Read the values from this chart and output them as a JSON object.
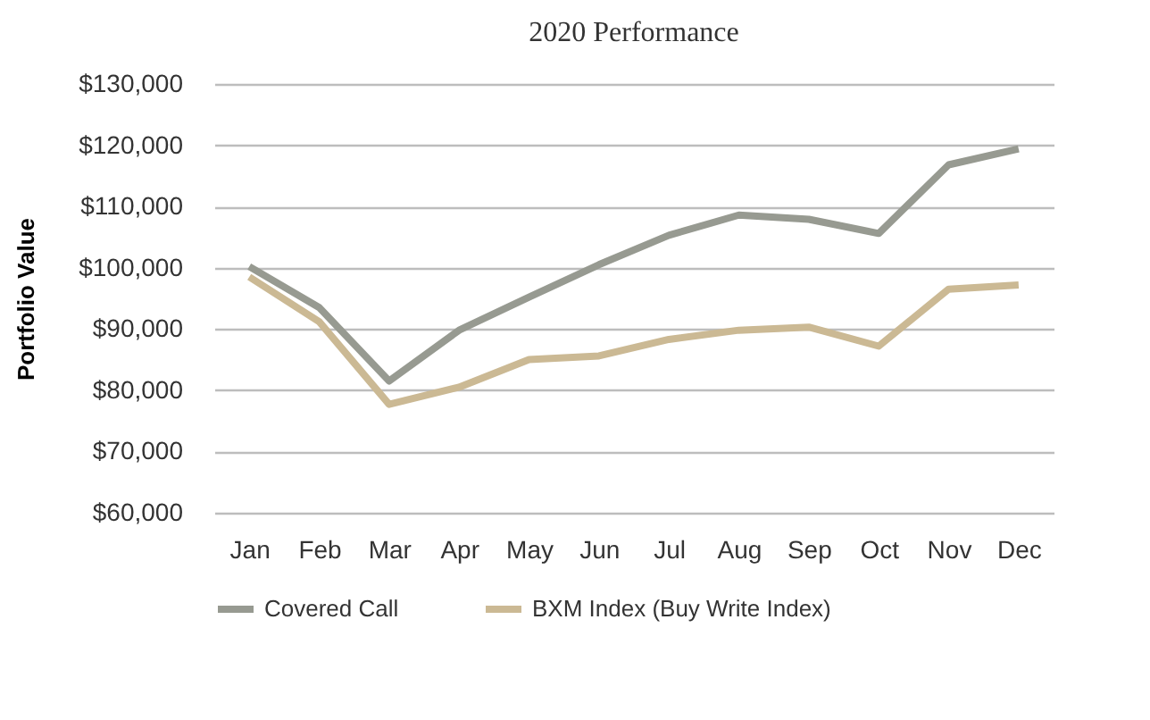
{
  "chart_data": {
    "type": "line",
    "title": "2020 Performance",
    "ylabel": "Portfolio Value",
    "categories": [
      "Jan",
      "Feb",
      "Mar",
      "Apr",
      "May",
      "Jun",
      "Jul",
      "Aug",
      "Sep",
      "Oct",
      "Nov",
      "Dec"
    ],
    "series": [
      {
        "name": "Covered Call",
        "color": "#979a91",
        "values": [
          100200,
          93500,
          81500,
          89800,
          95200,
          100500,
          105300,
          108600,
          107900,
          105600,
          116800,
          119400
        ]
      },
      {
        "name": "BXM Index (Buy Write Index)",
        "color": "#cbb994",
        "values": [
          98500,
          91200,
          77700,
          80500,
          85000,
          85600,
          88300,
          89800,
          90300,
          87200,
          96500,
          97200
        ]
      }
    ],
    "ylim": [
      60000,
      130000
    ],
    "yticks": [
      {
        "value": 60000,
        "label": "$60,000"
      },
      {
        "value": 70000,
        "label": "$70,000"
      },
      {
        "value": 80000,
        "label": "$80,000"
      },
      {
        "value": 90000,
        "label": "$90,000"
      },
      {
        "value": 100000,
        "label": "$100,000"
      },
      {
        "value": 110000,
        "label": "$110,000"
      },
      {
        "value": 120000,
        "label": "$120,000"
      },
      {
        "value": 130000,
        "label": "$130,000"
      }
    ],
    "grid": "y",
    "legend": "bottom",
    "marker": "none",
    "line_style": "solid"
  }
}
